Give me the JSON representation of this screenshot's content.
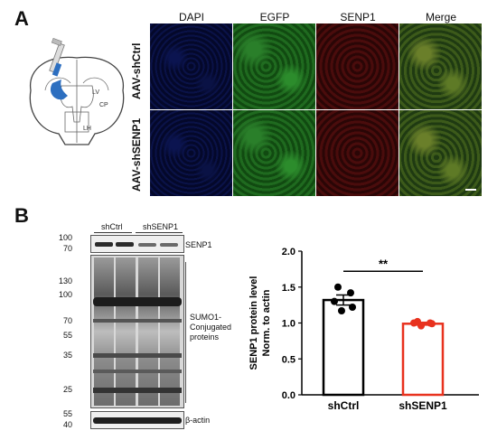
{
  "panel_a": {
    "letter": "A",
    "columns": [
      "DAPI",
      "EGFP",
      "SENP1",
      "Merge"
    ],
    "rows": [
      "AAV-shCtrl",
      "AAV-shSENP1"
    ],
    "brain_labels": {
      "lv": "LV",
      "cp": "CP",
      "lh": "LH"
    }
  },
  "panel_b": {
    "letter": "B",
    "blot": {
      "groups": [
        "shCtrl",
        "shSENP1"
      ],
      "senp1_markers": [
        "100",
        "70"
      ],
      "senp1_label": "SENP1",
      "sumo_markers": [
        "130",
        "100",
        "70",
        "55",
        "35",
        "25"
      ],
      "sumo_label": "SUMO1-\nConjugated\nproteins",
      "actin_markers": [
        "55",
        "40"
      ],
      "actin_label": "β-actin"
    }
  },
  "chart_data": {
    "type": "bar",
    "categories": [
      "shCtrl",
      "shSENP1"
    ],
    "values": [
      1.32,
      0.99
    ],
    "errors": [
      0.07,
      0.02
    ],
    "points": [
      [
        1.5,
        1.42,
        1.3,
        1.22,
        1.17
      ],
      [
        1.02,
        1.0,
        1.0,
        0.99,
        0.96
      ]
    ],
    "colors": [
      "#000000",
      "#e8321e"
    ],
    "ylabel": "SENP1 protein level\nNorm. to actin",
    "ylim": [
      0,
      2.0
    ],
    "yticks": [
      "0.0",
      "0.5",
      "1.0",
      "1.5",
      "2.0"
    ],
    "significance": "**"
  }
}
